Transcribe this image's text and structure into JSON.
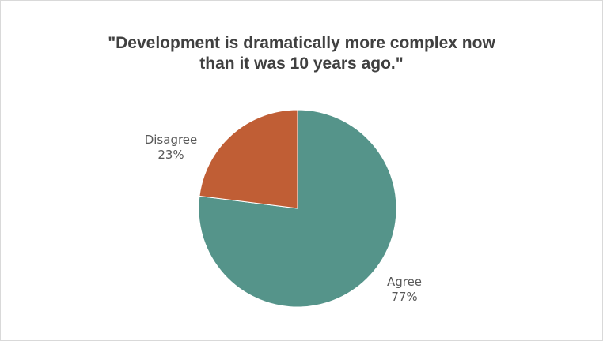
{
  "chart_data": {
    "type": "pie",
    "title": "\"Development is dramatically more complex now than it was 10 years ago.\"",
    "title_lines": [
      "\"Development is dramatically more complex now",
      "than it was 10 years ago.\""
    ],
    "slices": [
      {
        "label": "Agree",
        "value": 77,
        "value_label": "77%",
        "color": "#55948a"
      },
      {
        "label": "Disagree",
        "value": 23,
        "value_label": "23%",
        "color": "#c05e35"
      }
    ],
    "legend": "none"
  }
}
